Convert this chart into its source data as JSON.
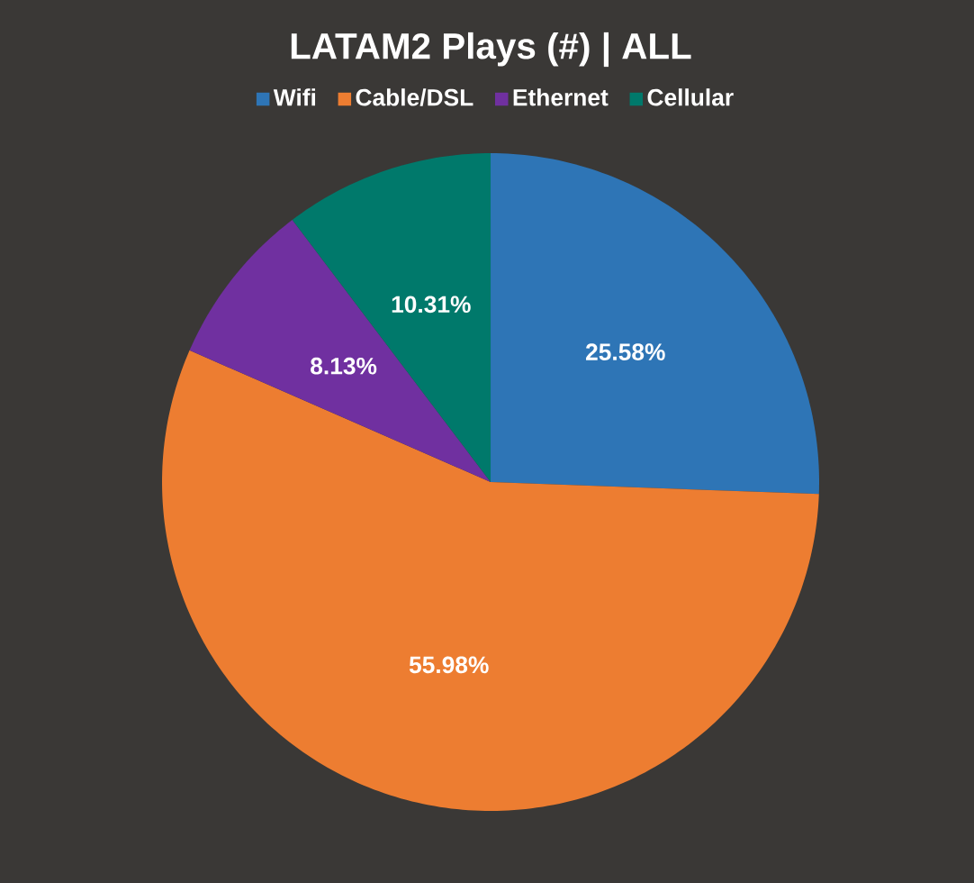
{
  "chart_data": {
    "type": "pie",
    "title": "LATAM2 Plays (#) | ALL",
    "categories": [
      "Wifi",
      "Cable/DSL",
      "Ethernet",
      "Cellular"
    ],
    "values": [
      25.58,
      55.98,
      8.13,
      10.31
    ],
    "value_labels": [
      "25.58%",
      "55.98%",
      "8.13%",
      "10.31%"
    ],
    "colors": [
      "#2e75b6",
      "#ed7d31",
      "#7030a0",
      "#00796b"
    ],
    "legend": "top"
  }
}
